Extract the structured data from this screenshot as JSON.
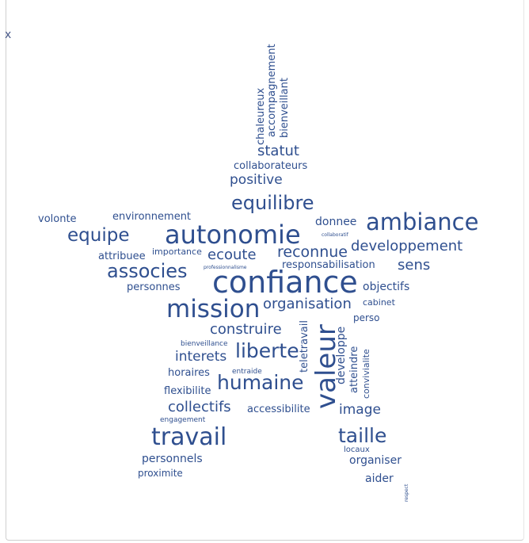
{
  "corner_glyph": "x",
  "words": {
    "chaleureux": "chaleureux",
    "accompagnement": "accompagnement",
    "bienveillant": "bienveillant",
    "statut": "statut",
    "collaborateurs": "collaborateurs",
    "positive": "positive",
    "equilibre": "equilibre",
    "volonte": "volonte",
    "environnement": "environnement",
    "donnee": "donnee",
    "ambiance": "ambiance",
    "equipe": "equipe",
    "autonomie": "autonomie",
    "collaboratif": "collaboratif",
    "developpement": "developpement",
    "attribuee": "attribuee",
    "importance": "importance",
    "ecoute": "ecoute",
    "reconnue": "reconnue",
    "sens": "sens",
    "associes": "associes",
    "professionnalisme": "professionnalisme",
    "responsabilisation": "responsabilisation",
    "personnes": "personnes",
    "confiance": "confiance",
    "objectifs": "objectifs",
    "mission": "mission",
    "organisation": "organisation",
    "cabinet": "cabinet",
    "perso": "perso",
    "construire": "construire",
    "teletravail": "teletravail",
    "valeur": "valeur",
    "developpe": "developpe",
    "atteindre": "atteindre",
    "convivialite": "convivialite",
    "bienveillance": "bienveillance",
    "liberte": "liberte",
    "interets": "interets",
    "horaires": "horaires",
    "entraide": "entraide",
    "humaine": "humaine",
    "flexibilite": "flexibilite",
    "collectifs": "collectifs",
    "accessibilite": "accessibilite",
    "image": "image",
    "engagement": "engagement",
    "travail": "travail",
    "taille": "taille",
    "locaux": "locaux",
    "personnels": "personnels",
    "organiser": "organiser",
    "proximite": "proximite",
    "aider": "aider",
    "respect": "respect"
  },
  "colors": {
    "word": "#2f4f8f",
    "frame": "#cfcfcf"
  }
}
